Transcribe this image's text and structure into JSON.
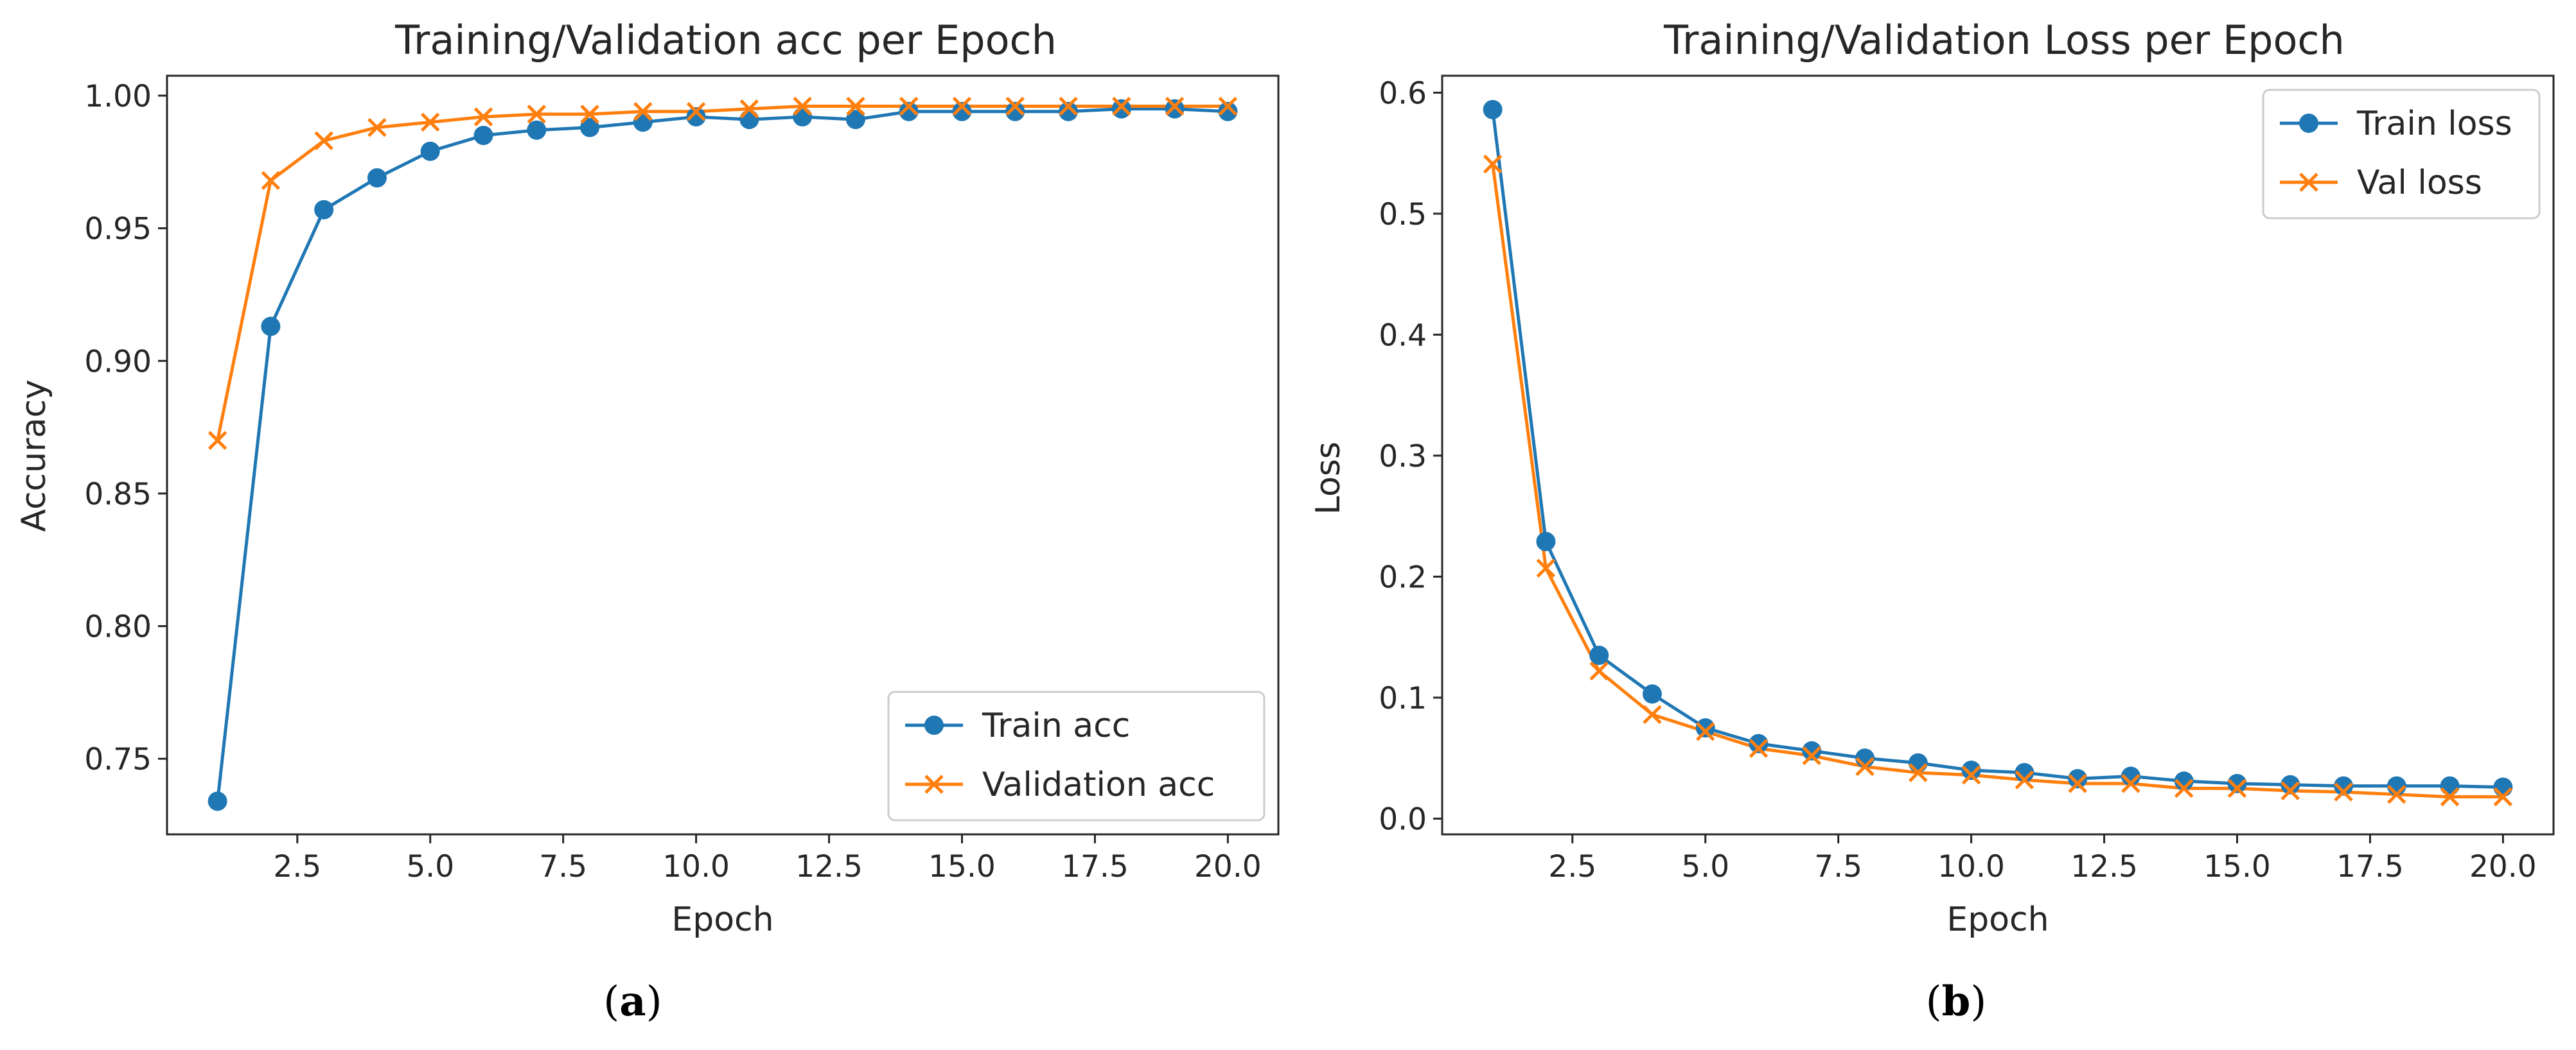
{
  "chart_data": [
    {
      "type": "line",
      "title": "Training/Validation acc per Epoch",
      "xlabel": "Epoch",
      "ylabel": "Accuracy",
      "caption_letter": "a",
      "xlim": [
        0.05,
        20.95
      ],
      "ylim": [
        0.7215,
        1.0075
      ],
      "xticks": [
        2.5,
        5.0,
        7.5,
        10.0,
        12.5,
        15.0,
        17.5,
        20.0
      ],
      "xtick_labels": [
        "2.5",
        "5.0",
        "7.5",
        "10.0",
        "12.5",
        "15.0",
        "17.5",
        "20.0"
      ],
      "yticks": [
        0.75,
        0.8,
        0.85,
        0.9,
        0.95,
        1.0
      ],
      "ytick_labels": [
        "0.75",
        "0.80",
        "0.85",
        "0.90",
        "0.95",
        "1.00"
      ],
      "legend_position": "lower-right",
      "x": [
        1,
        2,
        3,
        4,
        5,
        6,
        7,
        8,
        9,
        10,
        11,
        12,
        13,
        14,
        15,
        16,
        17,
        18,
        19,
        20
      ],
      "series": [
        {
          "name": "Train acc",
          "marker": "circle",
          "color": "#1f77b4",
          "values": [
            0.734,
            0.913,
            0.957,
            0.969,
            0.979,
            0.985,
            0.987,
            0.988,
            0.99,
            0.992,
            0.991,
            0.992,
            0.991,
            0.994,
            0.994,
            0.994,
            0.994,
            0.995,
            0.995,
            0.994
          ]
        },
        {
          "name": "Validation acc",
          "marker": "x",
          "color": "#ff7f0e",
          "values": [
            0.87,
            0.968,
            0.983,
            0.988,
            0.99,
            0.992,
            0.993,
            0.993,
            0.994,
            0.994,
            0.995,
            0.996,
            0.996,
            0.996,
            0.996,
            0.996,
            0.996,
            0.996,
            0.996,
            0.996
          ]
        }
      ]
    },
    {
      "type": "line",
      "title": "Training/Validation Loss per Epoch",
      "xlabel": "Epoch",
      "ylabel": "Loss",
      "caption_letter": "b",
      "xlim": [
        0.05,
        20.95
      ],
      "ylim": [
        -0.013,
        0.614
      ],
      "xticks": [
        2.5,
        5.0,
        7.5,
        10.0,
        12.5,
        15.0,
        17.5,
        20.0
      ],
      "xtick_labels": [
        "2.5",
        "5.0",
        "7.5",
        "10.0",
        "12.5",
        "15.0",
        "17.5",
        "20.0"
      ],
      "yticks": [
        0.0,
        0.1,
        0.2,
        0.3,
        0.4,
        0.5,
        0.6
      ],
      "ytick_labels": [
        "0.0",
        "0.1",
        "0.2",
        "0.3",
        "0.4",
        "0.5",
        "0.6"
      ],
      "legend_position": "upper-right",
      "x": [
        1,
        2,
        3,
        4,
        5,
        6,
        7,
        8,
        9,
        10,
        11,
        12,
        13,
        14,
        15,
        16,
        17,
        18,
        19,
        20
      ],
      "series": [
        {
          "name": "Train loss",
          "marker": "circle",
          "color": "#1f77b4",
          "values": [
            0.586,
            0.229,
            0.135,
            0.103,
            0.075,
            0.062,
            0.056,
            0.05,
            0.046,
            0.04,
            0.038,
            0.033,
            0.035,
            0.031,
            0.029,
            0.028,
            0.027,
            0.027,
            0.027,
            0.026
          ]
        },
        {
          "name": "Val loss",
          "marker": "x",
          "color": "#ff7f0e",
          "values": [
            0.541,
            0.207,
            0.122,
            0.086,
            0.072,
            0.058,
            0.052,
            0.043,
            0.038,
            0.036,
            0.032,
            0.029,
            0.029,
            0.025,
            0.025,
            0.023,
            0.022,
            0.02,
            0.018,
            0.018
          ]
        }
      ]
    }
  ]
}
